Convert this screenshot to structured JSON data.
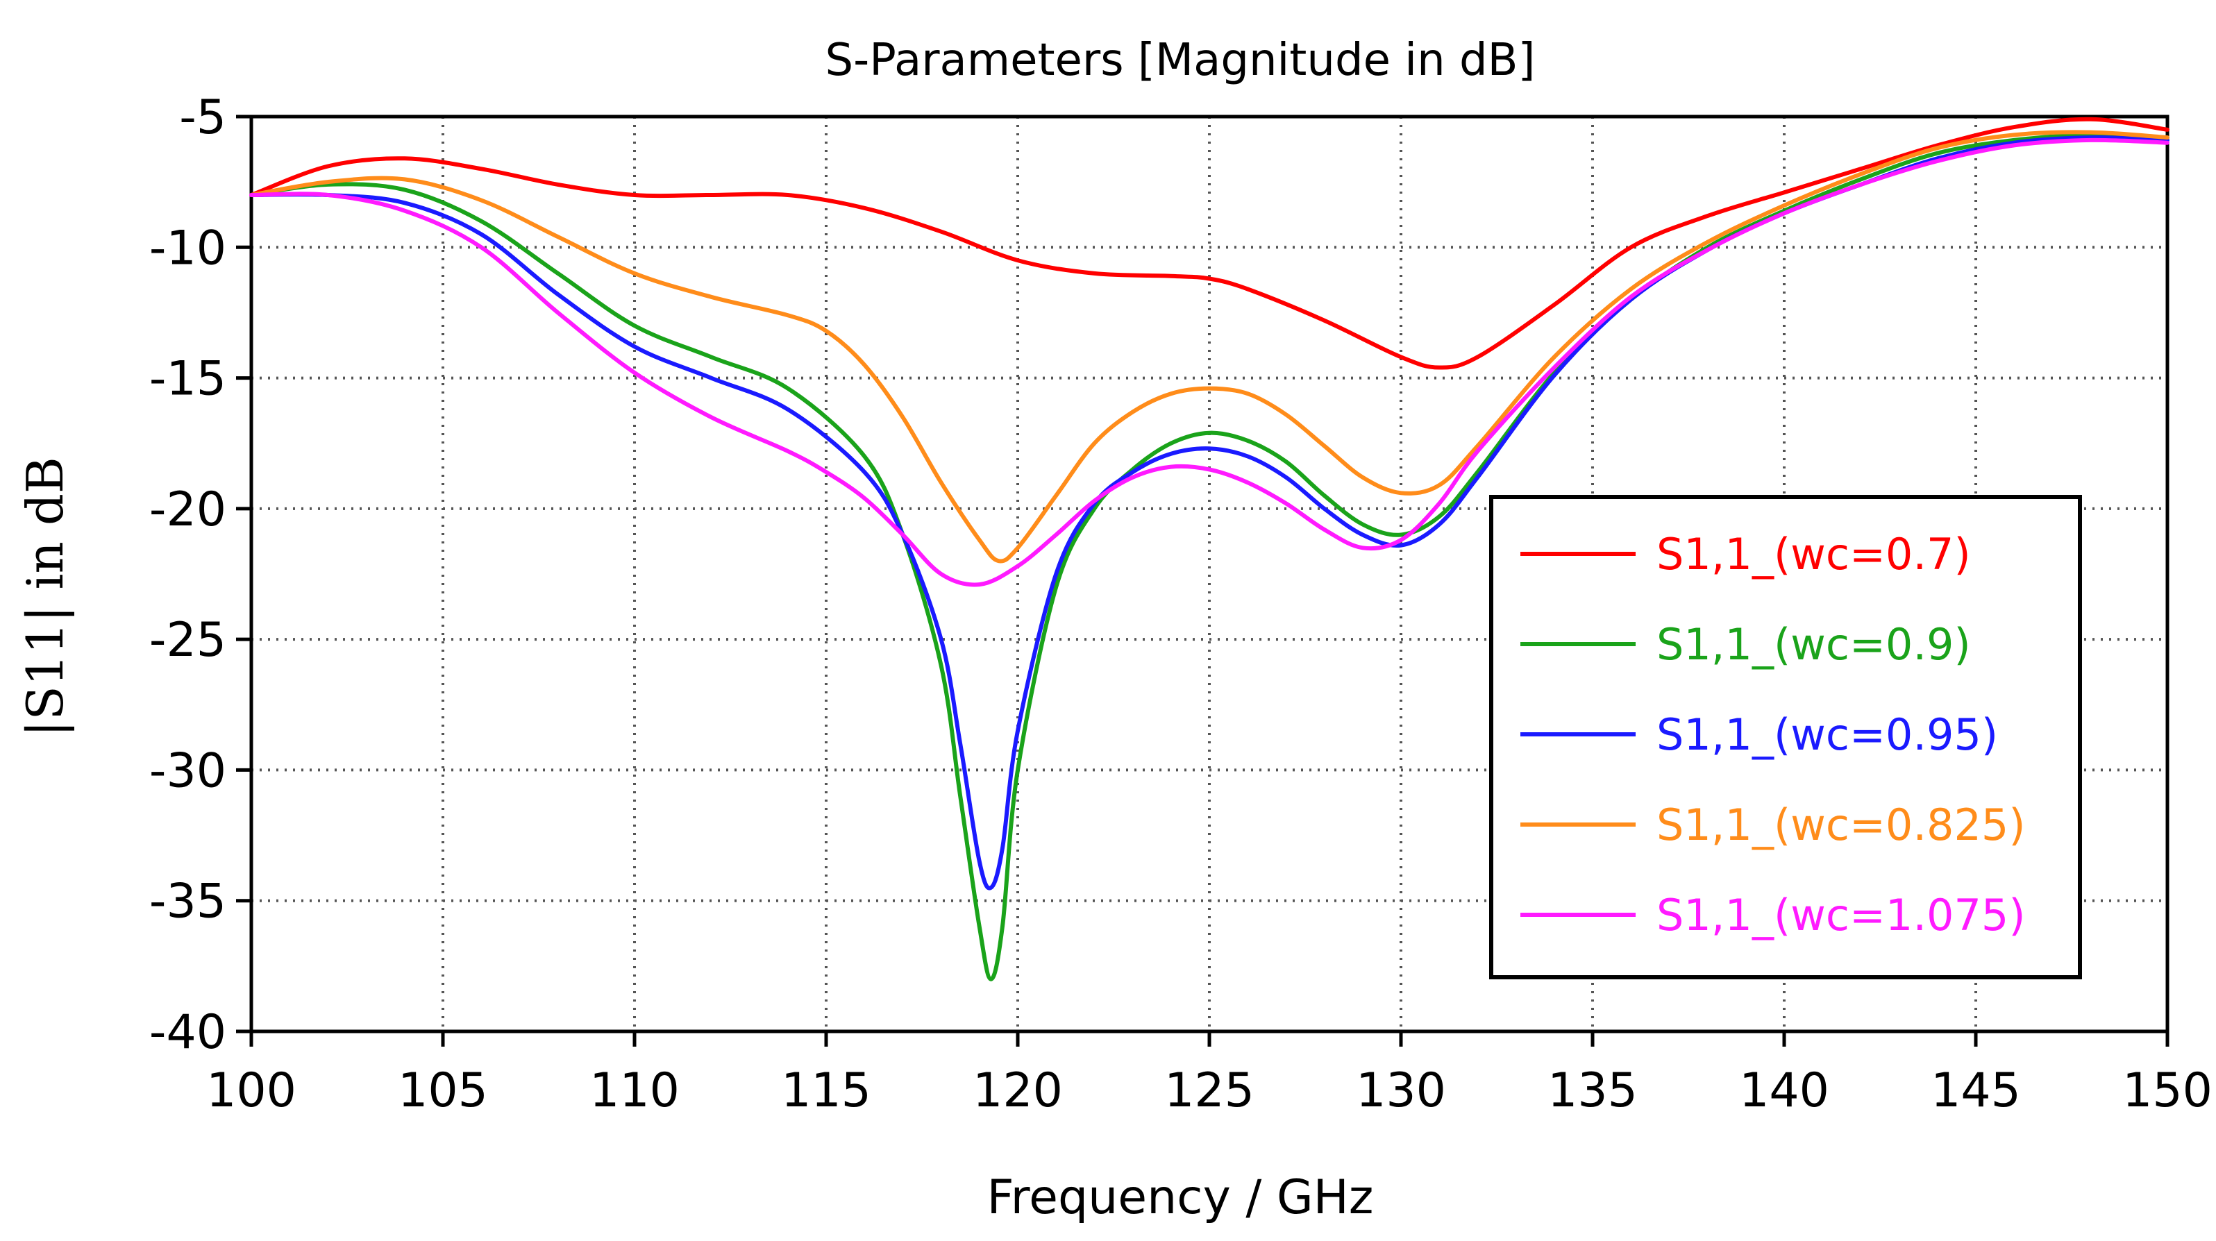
{
  "chart_data": {
    "type": "line",
    "title": "S-Parameters [Magnitude in dB]",
    "xlabel": "Frequency / GHz",
    "ylabel": "|S11| in dB",
    "xlim": [
      100,
      150
    ],
    "ylim": [
      -40,
      -5
    ],
    "xticks": [
      100,
      105,
      110,
      115,
      120,
      125,
      130,
      135,
      140,
      145,
      150
    ],
    "yticks": [
      -5,
      -10,
      -15,
      -20,
      -25,
      -30,
      -35,
      -40
    ],
    "grid": true,
    "legend_position": "right",
    "series": [
      {
        "name": "S1,1_(wc=0.7)",
        "color": "#ff0000",
        "x": [
          100,
          102,
          104,
          106,
          108,
          110,
          112,
          114,
          116,
          118,
          120,
          122,
          124,
          125,
          126,
          128,
          130,
          131,
          132,
          134,
          136,
          138,
          140,
          142,
          144,
          146,
          148,
          150
        ],
        "y": [
          -8.0,
          -6.9,
          -6.6,
          -7.0,
          -7.6,
          -8.0,
          -8.0,
          -8.0,
          -8.5,
          -9.4,
          -10.5,
          -11.0,
          -11.1,
          -11.2,
          -11.6,
          -12.8,
          -14.2,
          -14.6,
          -14.2,
          -12.2,
          -10.0,
          -8.8,
          -7.9,
          -7.0,
          -6.1,
          -5.4,
          -5.1,
          -5.5
        ]
      },
      {
        "name": "S1,1_(wc=0.9)",
        "color": "#1aa31a",
        "x": [
          100,
          102,
          104,
          106,
          108,
          110,
          112,
          114,
          116,
          117,
          118,
          118.5,
          119,
          119.3,
          119.6,
          120,
          121,
          122,
          123,
          124,
          125,
          126,
          127,
          128,
          129,
          130,
          131,
          132,
          134,
          136,
          138,
          140,
          142,
          144,
          146,
          148,
          150
        ],
        "y": [
          -8.0,
          -7.6,
          -7.8,
          -9.0,
          -11.0,
          -13.0,
          -14.2,
          -15.4,
          -18.0,
          -21.0,
          -26.0,
          -31.0,
          -36.0,
          -38.0,
          -36.0,
          -30.0,
          -23.0,
          -20.0,
          -18.5,
          -17.5,
          -17.1,
          -17.4,
          -18.2,
          -19.5,
          -20.6,
          -21.0,
          -20.3,
          -18.6,
          -14.8,
          -12.0,
          -10.0,
          -8.6,
          -7.4,
          -6.4,
          -5.9,
          -5.7,
          -5.8
        ]
      },
      {
        "name": "S1,1_(wc=0.95)",
        "color": "#1a1aff",
        "x": [
          100,
          102,
          104,
          106,
          108,
          110,
          112,
          114,
          116,
          117,
          118,
          118.5,
          119,
          119.3,
          119.6,
          120,
          121,
          122,
          123,
          124,
          125,
          126,
          127,
          128,
          129,
          130,
          131,
          132,
          134,
          136,
          138,
          140,
          142,
          144,
          146,
          148,
          150
        ],
        "y": [
          -8.0,
          -8.0,
          -8.3,
          -9.5,
          -11.8,
          -13.8,
          -15.0,
          -16.2,
          -18.6,
          -21.0,
          -25.0,
          -29.0,
          -33.5,
          -34.5,
          -33.0,
          -28.5,
          -22.5,
          -19.8,
          -18.6,
          -17.9,
          -17.7,
          -18.0,
          -18.8,
          -20.0,
          -21.0,
          -21.4,
          -20.6,
          -18.8,
          -14.9,
          -12.0,
          -10.1,
          -8.7,
          -7.6,
          -6.6,
          -6.0,
          -5.8,
          -5.9
        ]
      },
      {
        "name": "S1,1_(wc=0.825)",
        "color": "#ff8c1a",
        "x": [
          100,
          102,
          104,
          106,
          108,
          110,
          112,
          114,
          115,
          116,
          117,
          118,
          119,
          119.5,
          120,
          121,
          122,
          123,
          124,
          125,
          126,
          127,
          128,
          129,
          130,
          131,
          132,
          134,
          136,
          138,
          140,
          142,
          144,
          146,
          148,
          150
        ],
        "y": [
          -8.0,
          -7.5,
          -7.4,
          -8.2,
          -9.6,
          -11.0,
          -11.9,
          -12.6,
          -13.2,
          -14.5,
          -16.5,
          -19.0,
          -21.2,
          -22.0,
          -21.5,
          -19.5,
          -17.5,
          -16.3,
          -15.6,
          -15.4,
          -15.6,
          -16.4,
          -17.6,
          -18.8,
          -19.4,
          -19.1,
          -17.6,
          -14.2,
          -11.6,
          -9.8,
          -8.4,
          -7.2,
          -6.2,
          -5.7,
          -5.6,
          -5.8
        ]
      },
      {
        "name": "S1,1_(wc=1.075)",
        "color": "#ff1aff",
        "x": [
          100,
          102,
          104,
          106,
          108,
          110,
          112,
          114,
          115,
          116,
          117,
          118,
          119,
          120,
          121,
          122,
          123,
          124,
          125,
          126,
          127,
          128,
          129,
          130,
          131,
          132,
          134,
          136,
          138,
          140,
          142,
          144,
          146,
          148,
          150
        ],
        "y": [
          -8.0,
          -8.0,
          -8.6,
          -10.0,
          -12.5,
          -14.8,
          -16.5,
          -17.8,
          -18.6,
          -19.6,
          -21.0,
          -22.5,
          -22.9,
          -22.2,
          -21.0,
          -19.7,
          -18.8,
          -18.4,
          -18.5,
          -19.0,
          -19.8,
          -20.8,
          -21.5,
          -21.2,
          -19.8,
          -17.8,
          -14.6,
          -11.9,
          -10.1,
          -8.7,
          -7.6,
          -6.7,
          -6.1,
          -5.9,
          -6.0
        ]
      }
    ]
  }
}
